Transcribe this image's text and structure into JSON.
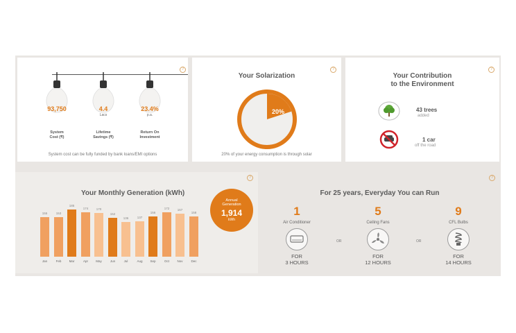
{
  "costs": {
    "note": "System cost can be fully funded by bank loans/EMI options",
    "items": [
      {
        "value": "93,750",
        "unit": "",
        "label1": "System",
        "label2": "Cost (₹)"
      },
      {
        "value": "4.4",
        "unit": "Lacs",
        "label1": "Lifetime",
        "label2": "Savings (₹)"
      },
      {
        "value": "23.4%",
        "unit": "p.a.",
        "label1": "Return On",
        "label2": "Investment"
      }
    ]
  },
  "solarization": {
    "title": "Your Solarization",
    "percent_label": "20%",
    "percent": 20,
    "note": "20% of your energy consumption is through solar"
  },
  "environment": {
    "title_line1": "Your Contribution",
    "title_line2": "to the Environment",
    "trees": {
      "count": "43 trees",
      "sub": "added",
      "icon": "tree-icon"
    },
    "cars": {
      "count": "1 car",
      "sub": "off the road",
      "icon": "no-car-icon"
    }
  },
  "generation": {
    "title": "Your Monthly Generation (kWh)",
    "annual_label1": "Annual",
    "annual_label2": "Generation",
    "annual_value": "1,914",
    "annual_unit": "kWh"
  },
  "chart_data": {
    "type": "bar",
    "title": "Your Monthly Generation (kWh)",
    "categories": [
      "Jan",
      "Feb",
      "Mar",
      "Apr",
      "May",
      "Jun",
      "Jul",
      "Aug",
      "Sep",
      "Oct",
      "Nov",
      "Dec"
    ],
    "values": [
      155,
      153,
      185,
      174,
      170,
      152,
      136,
      137,
      156,
      172,
      167,
      158
    ],
    "value_labels": [
      "155",
      "153",
      "185",
      "174",
      "170",
      "152",
      "136",
      "137",
      "156",
      "172",
      "167",
      "158"
    ],
    "ylim": [
      0,
      200
    ],
    "colors": [
      "#f0a060",
      "#f0a060",
      "#e07b1a",
      "#f0a060",
      "#f8c090",
      "#e07b1a",
      "#f8c090",
      "#f8c090",
      "#e07b1a",
      "#f0a060",
      "#f8c090",
      "#f0a060"
    ]
  },
  "run": {
    "title": "For 25 years, Everyday You can Run",
    "or_label": "OR",
    "items": [
      {
        "count": "1",
        "name": "Air Conditioner",
        "for": "FOR",
        "hours": "3 HOURS",
        "icon": "air-conditioner-icon"
      },
      {
        "count": "5",
        "name": "Ceiling Fans",
        "for": "FOR",
        "hours": "12 HOURS",
        "icon": "ceiling-fan-icon"
      },
      {
        "count": "9",
        "name": "CFL Bulbs",
        "for": "FOR",
        "hours": "14 HOURS",
        "icon": "cfl-bulb-icon"
      }
    ]
  },
  "colors": {
    "accent": "#e07b1a",
    "light": "#f0a060",
    "lighter": "#f8c090",
    "bg": "#e9e6e3"
  }
}
